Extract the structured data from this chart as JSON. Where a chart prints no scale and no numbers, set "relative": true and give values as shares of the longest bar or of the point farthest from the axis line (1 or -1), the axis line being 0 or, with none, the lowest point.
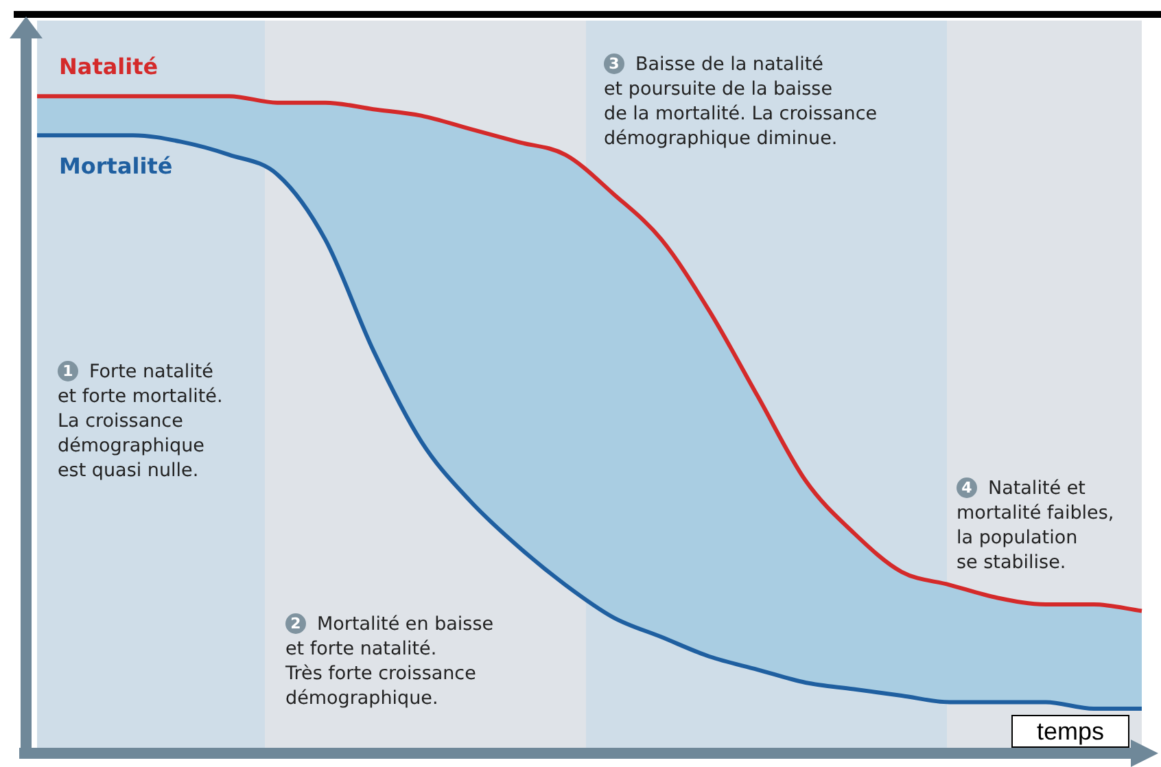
{
  "chart_data": {
    "type": "line",
    "relative": true,
    "xlabel": "temps",
    "grid": false,
    "legend": false,
    "marker": "none",
    "line_style": "solid",
    "categories": [
      null,
      null,
      null,
      null,
      null,
      null,
      null,
      null,
      null,
      null,
      null,
      null,
      null,
      null,
      null,
      null,
      null,
      null,
      null,
      null,
      null,
      null,
      null,
      null
    ],
    "series": [
      {
        "name": "Natalité",
        "color": "#d42a2a",
        "values": [
          1.0,
          1.0,
          1.0,
          1.0,
          1.0,
          0.99,
          0.99,
          0.98,
          0.97,
          0.95,
          0.93,
          0.91,
          0.85,
          0.78,
          0.67,
          0.54,
          0.41,
          0.33,
          0.27,
          0.25,
          0.23,
          0.22,
          0.22,
          0.21
        ]
      },
      {
        "name": "Mortalité",
        "color": "#1f5fa0",
        "values": [
          0.94,
          0.94,
          0.94,
          0.93,
          0.91,
          0.88,
          0.78,
          0.61,
          0.47,
          0.38,
          0.31,
          0.25,
          0.2,
          0.17,
          0.14,
          0.12,
          0.1,
          0.09,
          0.08,
          0.07,
          0.07,
          0.07,
          0.06,
          0.06
        ]
      }
    ],
    "annotations": [
      "1 Forte natalité\net forte mortalité.\nLa croissance\ndémographique\nest quasi nulle.",
      "2 Mortalité en baisse\net forte natalité.\nTrès forte croissance\ndémographique.",
      "3 Baisse de la natalité\net poursuite de la baisse\nde la mortalité. La croissance\ndémographique diminue.",
      "4 Natalité et\nmortalité faibles,\nla population\nse stabilise."
    ]
  }
}
